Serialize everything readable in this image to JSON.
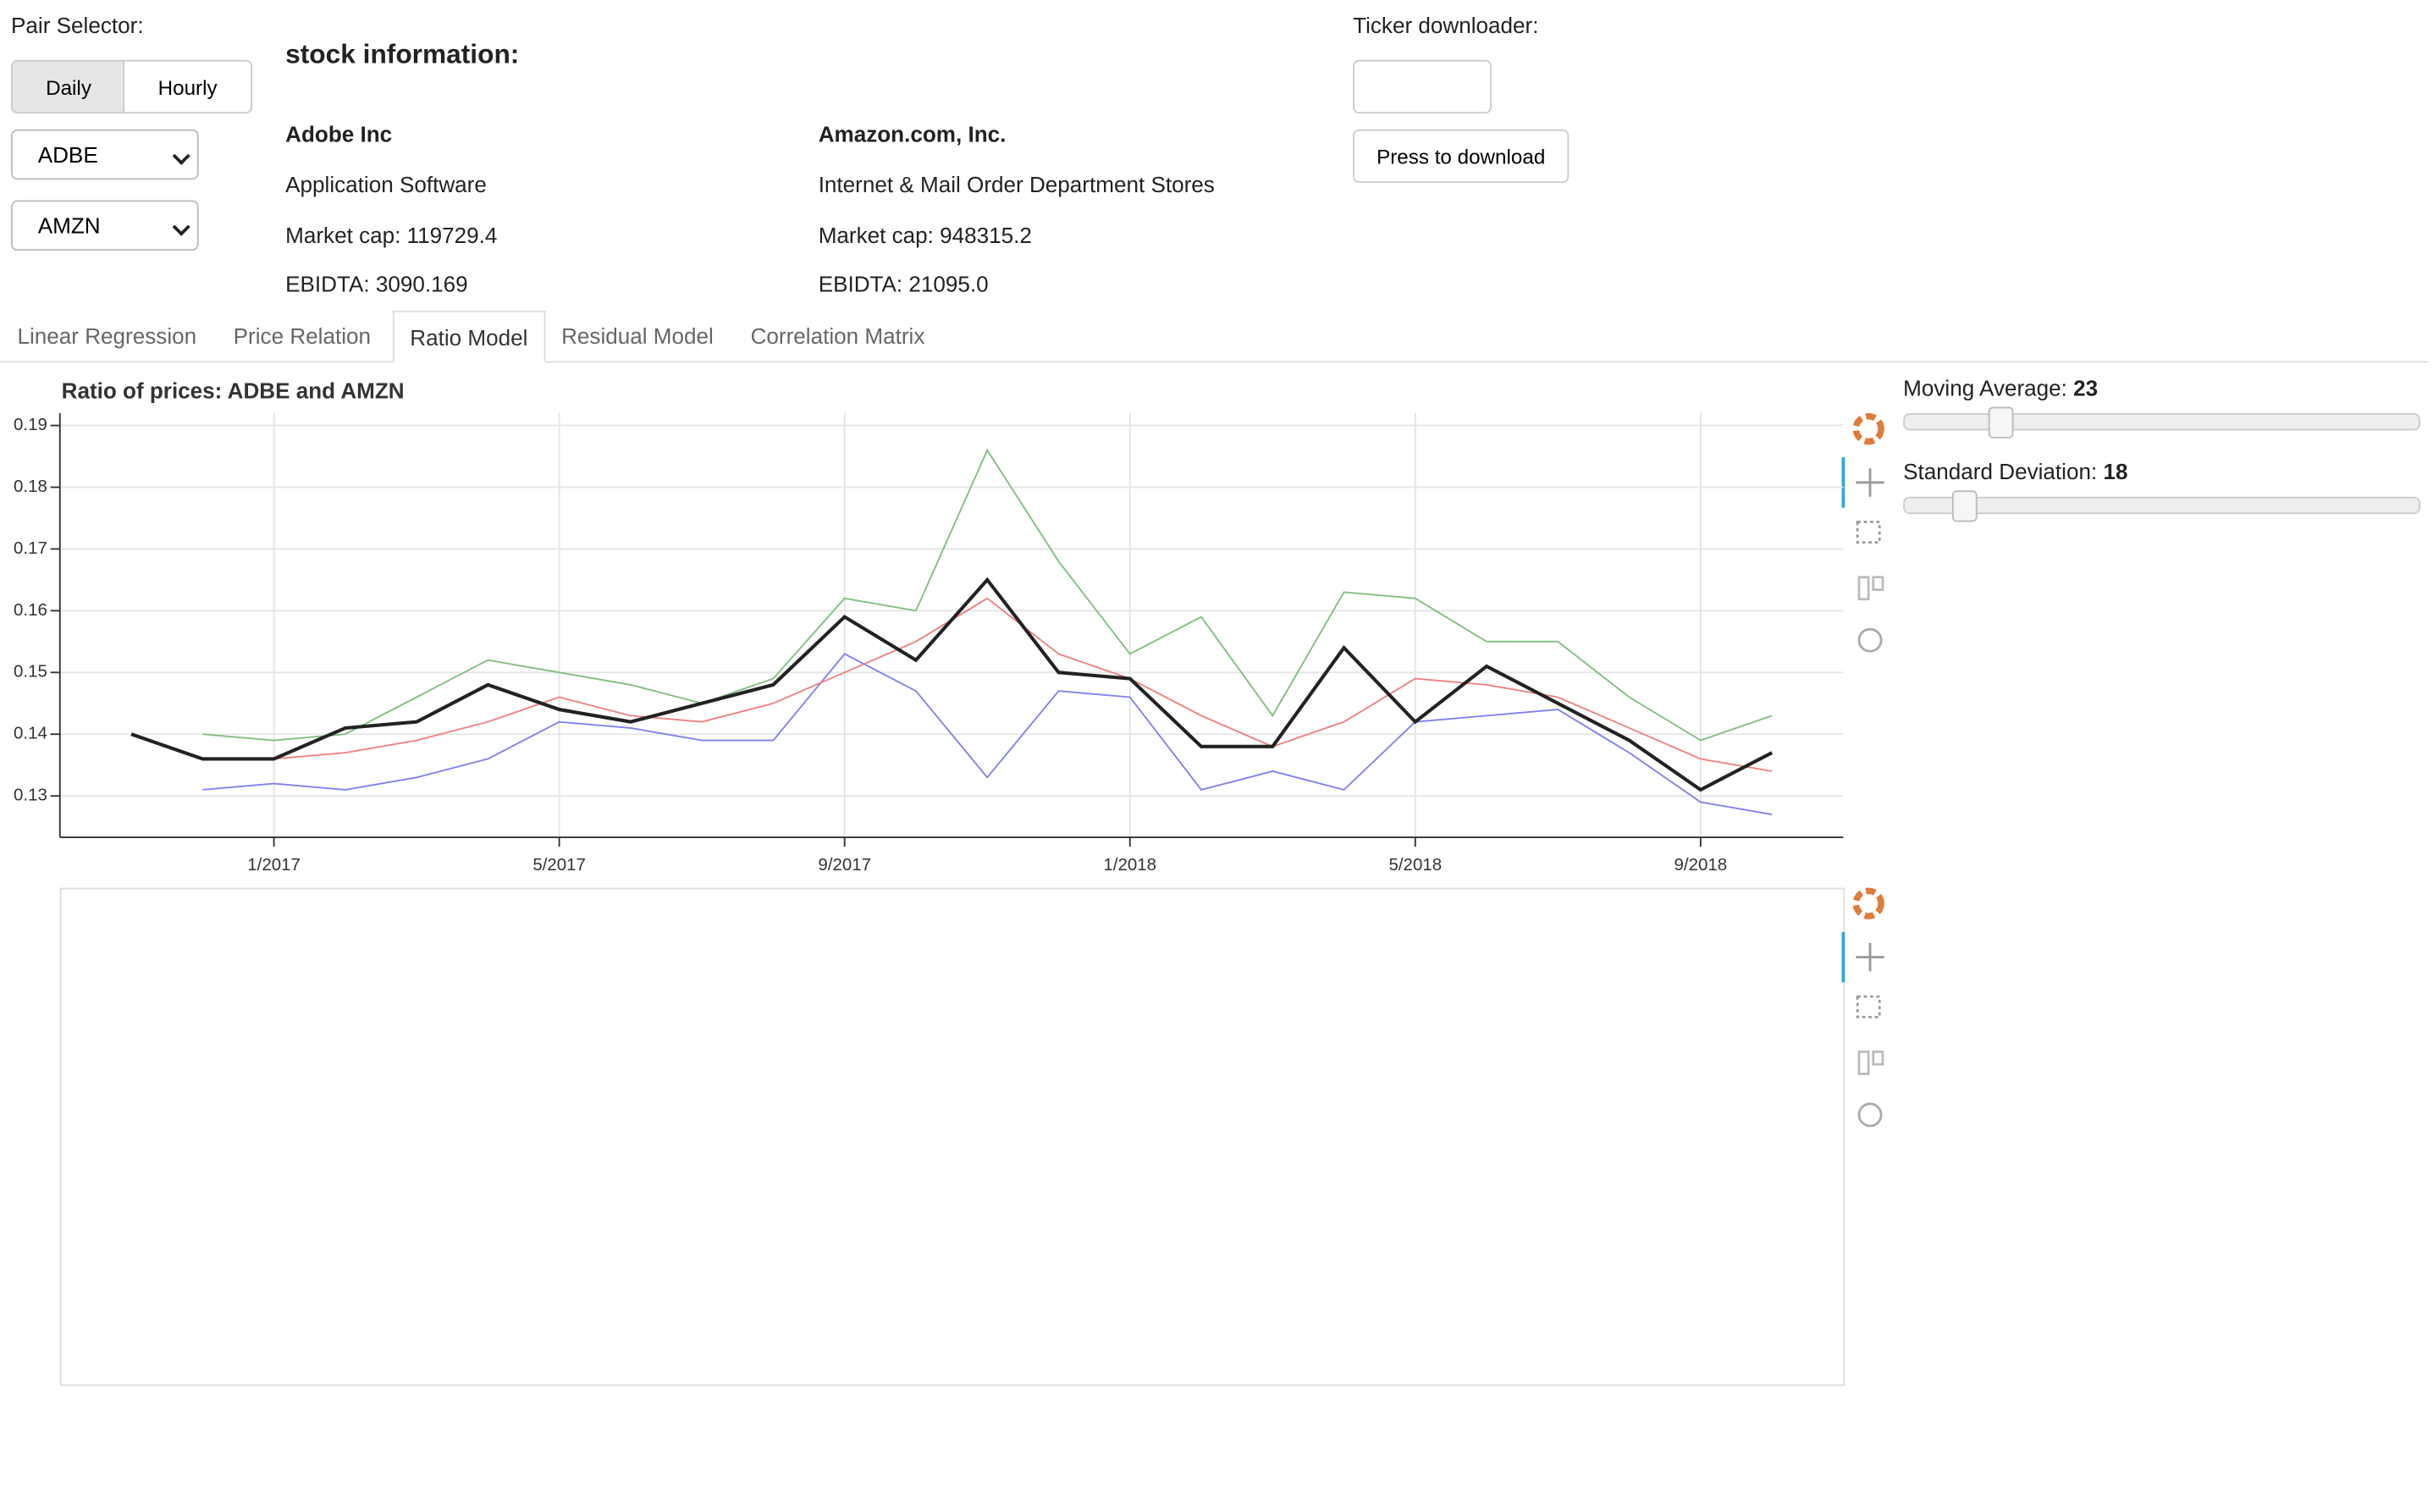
{
  "pair_selector": {
    "label": "Pair Selector:",
    "buttons": [
      "Daily",
      "Hourly"
    ],
    "selects": [
      "ADBE",
      "AMZN"
    ]
  },
  "stock_info": {
    "title": "stock information:",
    "stocks": [
      {
        "name": "Adobe Inc",
        "sector": "Application Software",
        "market_cap": "Market cap: 119729.4",
        "ebitda": "EBIDTA: 3090.169"
      },
      {
        "name": "Amazon.com, Inc.",
        "sector": "Internet & Mail Order Department Stores",
        "market_cap": "Market cap: 948315.2",
        "ebitda": "EBIDTA: 21095.0"
      }
    ]
  },
  "ticker_downloader": {
    "label": "Ticker downloader:",
    "button": "Press to download"
  },
  "tabs": [
    "Linear Regression",
    "Price Relation",
    "Ratio Model",
    "Residual Model",
    "Correlation Matrix"
  ],
  "sliders": [
    {
      "label": "Moving Average:",
      "value": 23
    },
    {
      "label": "Standard Deviation:",
      "value": 18
    }
  ],
  "chart_data": {
    "type": "line",
    "title": "Ratio of prices: ADBE and AMZN",
    "x": [
      "2016-11",
      "2016-12",
      "2017-01",
      "2017-02",
      "2017-03",
      "2017-04",
      "2017-05",
      "2017-06",
      "2017-07",
      "2017-08",
      "2017-09",
      "2017-10",
      "2017-11",
      "2017-12",
      "2018-01",
      "2018-02",
      "2018-03",
      "2018-04",
      "2018-05",
      "2018-06",
      "2018-07",
      "2018-08",
      "2018-09",
      "2018-10"
    ],
    "xlim": [
      "2016-10",
      "2018-11"
    ],
    "xticks": [
      {
        "value": "2017-01",
        "label": "1/2017"
      },
      {
        "value": "2017-05",
        "label": "5/2017"
      },
      {
        "value": "2017-09",
        "label": "9/2017"
      },
      {
        "value": "2018-01",
        "label": "1/2018"
      },
      {
        "value": "2018-05",
        "label": "5/2018"
      },
      {
        "value": "2018-09",
        "label": "9/2018"
      }
    ],
    "ylim": [
      0.1233,
      0.192
    ],
    "yticks": [
      0.13,
      0.14,
      0.15,
      0.16,
      0.17,
      0.18,
      0.19
    ],
    "grid": true,
    "series": [
      {
        "color": "#7fbf7f",
        "values": [
          null,
          0.14,
          0.139,
          0.14,
          0.146,
          0.152,
          0.15,
          0.148,
          0.145,
          0.149,
          0.162,
          0.16,
          0.186,
          0.168,
          0.153,
          0.159,
          0.143,
          0.163,
          0.162,
          0.155,
          0.155,
          0.146,
          0.139,
          0.143
        ]
      },
      {
        "color": "#8080f0",
        "values": [
          null,
          0.131,
          0.132,
          0.131,
          0.133,
          0.136,
          0.142,
          0.141,
          0.139,
          0.139,
          0.153,
          0.147,
          0.133,
          0.147,
          0.146,
          0.131,
          0.134,
          0.131,
          0.142,
          0.143,
          0.144,
          0.137,
          0.129,
          0.127
        ]
      },
      {
        "color": "#f08080",
        "values": [
          null,
          0.136,
          0.136,
          0.137,
          0.139,
          0.142,
          0.146,
          0.143,
          0.142,
          0.145,
          0.15,
          0.155,
          0.162,
          0.153,
          0.149,
          0.143,
          0.138,
          0.142,
          0.149,
          0.148,
          0.146,
          0.141,
          0.136,
          0.134
        ]
      },
      {
        "color": "#222222",
        "values": [
          0.14,
          0.136,
          0.136,
          0.141,
          0.142,
          0.148,
          0.144,
          0.142,
          0.145,
          0.148,
          0.159,
          0.152,
          0.165,
          0.15,
          0.149,
          0.138,
          0.138,
          0.154,
          0.142,
          0.151,
          0.145,
          0.139,
          0.131,
          0.137
        ]
      }
    ]
  }
}
